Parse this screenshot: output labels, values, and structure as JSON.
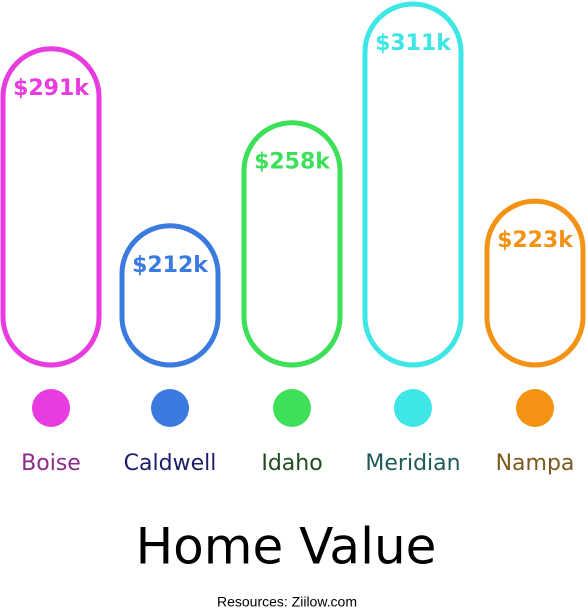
{
  "chart_data": {
    "type": "bar",
    "title": "Home Value",
    "source": "Resources: Ziilow.com",
    "categories": [
      "Boise",
      "Caldwell",
      "Idaho",
      "Meridian",
      "Nampa"
    ],
    "values": [
      291,
      212,
      258,
      311,
      223
    ],
    "value_labels": [
      "$291k",
      "$212k",
      "$258k",
      "$311k",
      "$223k"
    ],
    "colors": [
      "#e83be0",
      "#3b7be0",
      "#3ee05a",
      "#3ee6e6",
      "#f39214"
    ],
    "label_colors": [
      "#8b2a8b",
      "#1d1d6b",
      "#1f4a1f",
      "#1f5a5a",
      "#7a5a1f"
    ]
  }
}
